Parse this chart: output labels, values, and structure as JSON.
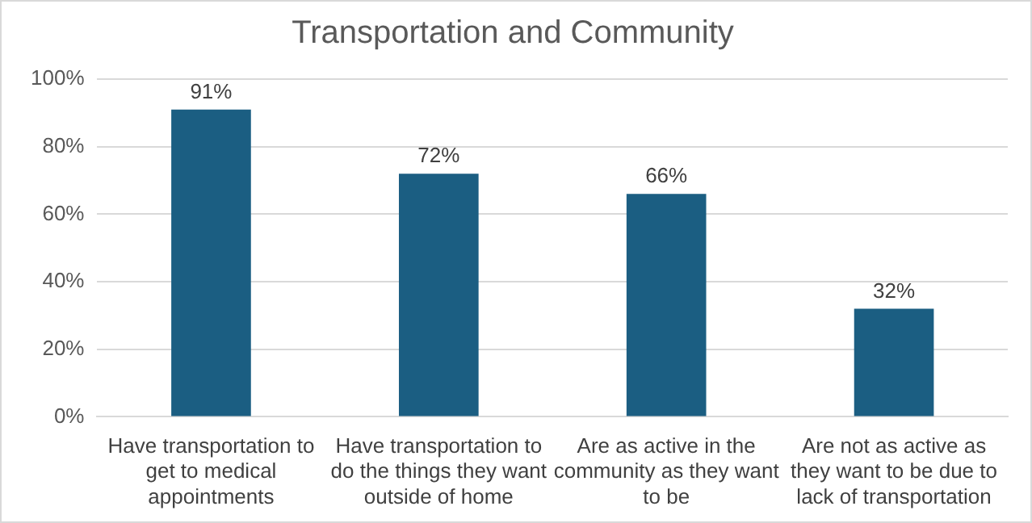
{
  "chart_data": {
    "type": "bar",
    "title": "Transportation and Community",
    "categories": [
      "Have transportation to get to medical appointments",
      "Have transportation to do the things they want outside of home",
      "Are as active in the community as they want to be",
      "Are not as active as they want to be due to lack of transportation"
    ],
    "values": [
      91,
      72,
      66,
      32
    ],
    "color": "#1b5e82",
    "value_labels": [
      "91%",
      "72%",
      "66%",
      "32%"
    ],
    "ylim": [
      0,
      100
    ],
    "yticks": [
      {
        "value": 0,
        "label": "0%"
      },
      {
        "value": 20,
        "label": "20%"
      },
      {
        "value": 40,
        "label": "40%"
      },
      {
        "value": 60,
        "label": "60%"
      },
      {
        "value": 80,
        "label": "80%"
      },
      {
        "value": 100,
        "label": "100%"
      }
    ],
    "grid": "y",
    "legend": false
  }
}
